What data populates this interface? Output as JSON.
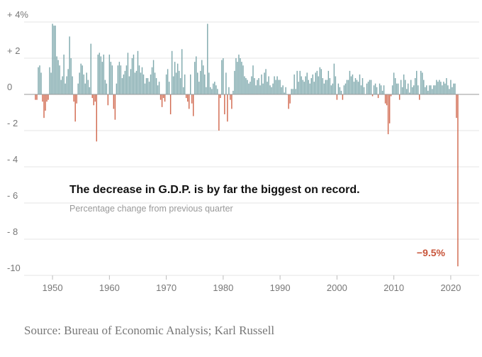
{
  "chart_data": {
    "type": "bar",
    "title": "The decrease in G.D.P. is by far the biggest on record.",
    "subtitle": "Percentage change from previous quarter",
    "ylim": [
      -10,
      4.5
    ],
    "xlim": [
      1946.5,
      2023.5
    ],
    "grid": true,
    "y_ticks": [
      {
        "value": 4,
        "label": "+ 4%"
      },
      {
        "value": 2,
        "label": "+ 2"
      },
      {
        "value": 0,
        "label": "0"
      },
      {
        "value": -2,
        "label": "- 2"
      },
      {
        "value": -4,
        "label": "- 4"
      },
      {
        "value": -6,
        "label": "- 6"
      },
      {
        "value": -8,
        "label": "- 8"
      },
      {
        "value": -10,
        "label": "-10"
      }
    ],
    "x_ticks": [
      1950,
      1960,
      1970,
      1980,
      1990,
      2000,
      2010,
      2020
    ],
    "annotation": {
      "label": "−9.5%",
      "x": 2020.25,
      "y": -9.5
    },
    "colors": {
      "positive": "#7fa9ad",
      "negative": "#d1694f",
      "annotation": "#c8553a"
    },
    "series": [
      {
        "start": 1947.0,
        "step": 0.25,
        "values": [
          -0.3,
          -0.3,
          1.5,
          1.6,
          1.2,
          -0.4,
          -1.3,
          -0.9,
          -0.4,
          -0.3,
          1.5,
          1.2,
          3.9,
          3.8,
          3.8,
          2.1,
          1.9,
          1.6,
          0.8,
          1.0,
          2.2,
          0.6,
          1.0,
          1.4,
          3.2,
          2.0,
          1.0,
          -0.4,
          -1.5,
          -0.5,
          0.6,
          1.2,
          1.7,
          1.6,
          1.1,
          0.6,
          1.2,
          0.8,
          0.4,
          2.8,
          -0.2,
          -0.6,
          -0.4,
          -2.6,
          2.2,
          2.3,
          2.1,
          1.8,
          2.2,
          0.8,
          0.6,
          -0.6,
          2.2,
          1.8,
          1.6,
          -0.8,
          -1.4,
          0.6,
          1.6,
          1.8,
          1.6,
          0.9,
          1.1,
          1.3,
          1.6,
          2.3,
          1.0,
          1.4,
          2.0,
          2.2,
          1.2,
          1.3,
          2.4,
          1.6,
          1.2,
          1.5,
          1.1,
          0.6,
          0.9,
          0.9,
          0.7,
          1.1,
          1.5,
          1.9,
          1.2,
          0.9,
          0.5,
          0.7,
          -0.3,
          -0.7,
          -0.2,
          -0.4,
          1.1,
          1.4,
          0.7,
          -1.1,
          2.4,
          1.0,
          1.8,
          1.2,
          1.7,
          1.3,
          0.9,
          2.5,
          0.4,
          1.1,
          -0.2,
          -0.4,
          -0.8,
          1.1,
          -0.5,
          -1.2,
          1.8,
          2.1,
          1.2,
          0.7,
          1.3,
          1.9,
          1.6,
          1.1,
          0.4,
          3.9,
          1.2,
          0.4,
          0.3,
          0.6,
          0.7,
          0.5,
          0.3,
          -2.0,
          -0.2,
          1.9,
          2.0,
          -1.1,
          1.2,
          -1.5,
          0.4,
          -0.3,
          -0.8,
          0.2,
          1.3,
          2.0,
          1.8,
          2.2,
          2.0,
          1.8,
          1.6,
          1.0,
          0.9,
          0.8,
          0.6,
          0.7,
          1.0,
          1.6,
          0.9,
          0.5,
          0.8,
          0.9,
          0.5,
          1.1,
          0.6,
          1.2,
          1.4,
          0.7,
          1.0,
          0.5,
          0.4,
          0.6,
          1.0,
          0.8,
          1.0,
          0.8,
          0.8,
          0.4,
          0.5,
          0.1,
          0.4,
          0.0,
          -0.8,
          -0.5,
          0.3,
          0.3,
          1.1,
          0.3,
          1.3,
          0.7,
          1.3,
          1.0,
          0.8,
          0.7,
          1.0,
          1.2,
          0.8,
          0.6,
          0.9,
          1.1,
          0.7,
          1.2,
          1.3,
          1.0,
          1.5,
          1.4,
          0.9,
          0.6,
          0.8,
          0.8,
          1.3,
          0.9,
          0.5,
          0.6,
          1.7,
          1.0,
          -0.3,
          0.6,
          0.4,
          0.2,
          -0.3,
          0.5,
          0.6,
          0.8,
          0.8,
          1.3,
          1.0,
          1.1,
          0.7,
          0.9,
          0.8,
          0.7,
          1.1,
          0.5,
          0.9,
          0.4,
          0.0,
          0.6,
          0.7,
          0.8,
          0.8,
          -0.1,
          0.5,
          0.6,
          0.4,
          -0.2,
          0.6,
          0.5,
          0.2,
          0.5,
          -0.5,
          -0.6,
          -2.2,
          -1.6,
          -0.1,
          0.5,
          1.2,
          0.9,
          0.6,
          0.6,
          -0.3,
          0.8,
          0.4,
          1.1,
          0.8,
          0.3,
          0.6,
          0.1,
          0.8,
          0.4,
          0.5,
          0.9,
          1.3,
          0.5,
          -0.3,
          1.3,
          1.2,
          0.8,
          0.4,
          0.5,
          0.2,
          0.5,
          0.5,
          0.3,
          0.5,
          0.5,
          0.8,
          0.7,
          0.8,
          0.7,
          0.5,
          0.7,
          0.6,
          0.9,
          0.5,
          0.3,
          0.8,
          0.4,
          0.6,
          0.6,
          -1.3,
          -9.5
        ]
      }
    ]
  },
  "footer": {
    "source": "Source: Bureau of Economic Analysis; Karl Russell"
  }
}
